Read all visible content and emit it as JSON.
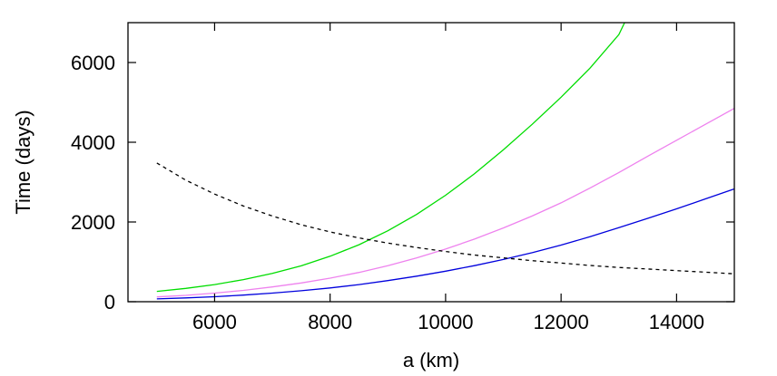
{
  "chart_data": {
    "type": "line",
    "title": "",
    "xlabel": "a (km)",
    "ylabel": "Time (days)",
    "xlim": [
      4500,
      15000
    ],
    "ylim": [
      0,
      7000
    ],
    "xticks": [
      6000,
      8000,
      10000,
      12000,
      14000
    ],
    "yticks": [
      0,
      2000,
      4000,
      6000
    ],
    "xtick_labels": [
      "6000",
      "8000",
      "10000",
      "12000",
      "14000"
    ],
    "ytick_labels": [
      "0",
      "2000",
      "4000",
      "6000"
    ],
    "grid": false,
    "legend": "none",
    "series": [
      {
        "color": "#00dd00",
        "style": "solid",
        "x": [
          5000,
          5500,
          6000,
          6500,
          7000,
          7500,
          8000,
          8500,
          9000,
          9500,
          10000,
          10500,
          11000,
          11500,
          12000,
          12500,
          13000,
          13100
        ],
        "y": [
          260,
          335,
          430,
          555,
          710,
          900,
          1140,
          1430,
          1780,
          2190,
          2670,
          3210,
          3810,
          4450,
          5130,
          5860,
          6700,
          7000
        ]
      },
      {
        "color": "#ee82ee",
        "style": "solid",
        "x": [
          5000,
          5500,
          6000,
          6500,
          7000,
          7500,
          8000,
          8500,
          9000,
          9500,
          10000,
          10500,
          11000,
          11500,
          12000,
          12500,
          13000,
          13500,
          14000,
          14500,
          15000
        ],
        "y": [
          120,
          160,
          215,
          285,
          370,
          470,
          590,
          735,
          905,
          1100,
          1320,
          1570,
          1850,
          2150,
          2480,
          2850,
          3240,
          3650,
          4050,
          4450,
          4850
        ]
      },
      {
        "color": "#0000dd",
        "style": "solid",
        "x": [
          5000,
          5500,
          6000,
          6500,
          7000,
          7500,
          8000,
          8500,
          9000,
          9500,
          10000,
          10500,
          11000,
          11500,
          12000,
          12500,
          13000,
          13500,
          14000,
          14500,
          15000
        ],
        "y": [
          70,
          95,
          125,
          165,
          215,
          275,
          345,
          430,
          530,
          640,
          765,
          905,
          1060,
          1230,
          1420,
          1630,
          1860,
          2090,
          2330,
          2580,
          2830
        ]
      },
      {
        "color": "#000000",
        "style": "dashed",
        "x": [
          5000,
          5500,
          6000,
          6500,
          7000,
          7500,
          8000,
          8500,
          9000,
          9500,
          10000,
          10500,
          11000,
          11500,
          12000,
          12500,
          13000,
          13500,
          14000,
          14500,
          15000
        ],
        "y": [
          3480,
          3050,
          2700,
          2400,
          2150,
          1930,
          1750,
          1600,
          1470,
          1360,
          1260,
          1170,
          1100,
          1030,
          970,
          910,
          860,
          820,
          780,
          740,
          700
        ]
      }
    ]
  }
}
